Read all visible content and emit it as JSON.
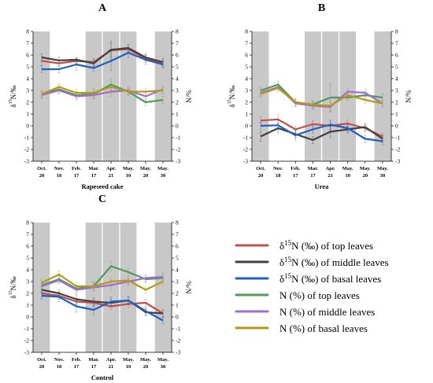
{
  "legend": {
    "position": "bottom-right",
    "entries": [
      {
        "key": "d15N_top",
        "label": "δ15N (‰) of top leaves",
        "color": "#c0504d"
      },
      {
        "key": "d15N_middle",
        "label": "δ15N (‰) of middle leaves",
        "color": "#404040"
      },
      {
        "key": "d15N_basal",
        "label": "δ15N (‰) of basal leaves",
        "color": "#1f5fbf"
      },
      {
        "key": "N_top",
        "label": "N (%) of top leaves",
        "color": "#4f9a5a"
      },
      {
        "key": "N_middle",
        "label": "N (%) of middle leaves",
        "color": "#9e6fcf"
      },
      {
        "key": "N_basal",
        "label": "N (%) of basal leaves",
        "color": "#b59a12"
      }
    ]
  },
  "chart_data": [
    {
      "type": "line",
      "title": "A",
      "xlabel": "Rapeseed cake",
      "ylabel_left": "δ15N/‰",
      "ylabel_right": "N/%",
      "ylim": [
        -3,
        8
      ],
      "yticks": [
        -3,
        -2,
        -1,
        0,
        1,
        2,
        3,
        4,
        5,
        6,
        7,
        8
      ],
      "categories": [
        [
          "Oct.",
          "20"
        ],
        [
          "Nov.",
          "18"
        ],
        [
          "Feb.",
          "17"
        ],
        [
          "Mar.",
          "17"
        ],
        [
          "Apr.",
          "21"
        ],
        [
          "May.",
          "10"
        ],
        [
          "May.",
          "20"
        ],
        [
          "May.",
          "30"
        ]
      ],
      "shaded_categories": [
        0,
        3,
        4,
        5,
        7
      ],
      "series": [
        {
          "key": "d15N_top",
          "values": [
            5.5,
            5.3,
            5.5,
            5.4,
            6.4,
            6.5,
            5.7,
            5.3
          ],
          "errors": [
            0.4,
            0.3,
            0.2,
            0.3,
            0.8,
            0.3,
            0.3,
            0.3
          ]
        },
        {
          "key": "d15N_middle",
          "values": [
            5.8,
            5.55,
            5.6,
            5.3,
            6.45,
            6.6,
            5.8,
            5.4
          ],
          "errors": [
            0.3,
            0.3,
            0.2,
            0.3,
            0.6,
            0.3,
            0.3,
            0.3
          ]
        },
        {
          "key": "d15N_basal",
          "values": [
            4.8,
            4.8,
            5.2,
            4.9,
            5.5,
            6.2,
            5.6,
            5.2
          ],
          "errors": [
            0.3,
            0.3,
            0.5,
            0.3,
            0.8,
            0.4,
            0.4,
            0.3
          ]
        },
        {
          "key": "N_top",
          "values": [
            2.7,
            3.1,
            2.6,
            2.7,
            3.5,
            2.9,
            2.0,
            2.2
          ],
          "errors": [
            0.3,
            0.3,
            0.3,
            0.4,
            0.5,
            0.3,
            0.3,
            0.3
          ]
        },
        {
          "key": "N_middle",
          "values": [
            2.6,
            3.0,
            2.5,
            2.6,
            2.9,
            3.0,
            2.5,
            3.1
          ],
          "errors": [
            0.3,
            0.3,
            0.3,
            0.3,
            0.4,
            0.3,
            0.3,
            0.3
          ]
        },
        {
          "key": "N_basal",
          "values": [
            2.7,
            3.3,
            2.8,
            2.8,
            3.3,
            2.9,
            2.9,
            3.0
          ],
          "errors": [
            0.3,
            0.3,
            0.3,
            0.4,
            0.5,
            0.3,
            0.3,
            0.3
          ]
        }
      ]
    },
    {
      "type": "line",
      "title": "B",
      "xlabel": "Urea",
      "ylabel_left": "δ15N/‰",
      "ylabel_right": "N/%",
      "ylim": [
        -3,
        8
      ],
      "yticks": [
        -3,
        -2,
        -1,
        0,
        1,
        2,
        3,
        4,
        5,
        6,
        7,
        8
      ],
      "categories": [
        [
          "Oct.",
          "20"
        ],
        [
          "Nov.",
          "18"
        ],
        [
          "Feb.",
          "17"
        ],
        [
          "Mar.",
          "17"
        ],
        [
          "Apr.",
          "21"
        ],
        [
          "May.",
          "10"
        ],
        [
          "May.",
          "20"
        ],
        [
          "May.",
          "30"
        ]
      ],
      "shaded_categories": [
        0,
        3,
        4,
        5,
        7
      ],
      "series": [
        {
          "key": "d15N_top",
          "values": [
            0.45,
            0.55,
            -0.3,
            0.15,
            0.0,
            0.2,
            -0.2,
            -0.9
          ],
          "errors": [
            0.3,
            0.4,
            0.3,
            0.3,
            0.4,
            0.3,
            0.3,
            0.3
          ]
        },
        {
          "key": "d15N_middle",
          "values": [
            -0.9,
            -0.2,
            -0.7,
            -1.2,
            -0.5,
            -0.3,
            -0.1,
            -1.1
          ],
          "errors": [
            0.4,
            0.4,
            0.3,
            0.3,
            0.5,
            0.3,
            0.3,
            0.3
          ]
        },
        {
          "key": "d15N_basal",
          "values": [
            0.0,
            0.05,
            -0.8,
            -0.3,
            0.1,
            -0.2,
            -1.1,
            -1.3
          ],
          "errors": [
            0.3,
            0.4,
            0.4,
            0.3,
            0.4,
            0.3,
            0.3,
            0.3
          ]
        },
        {
          "key": "N_top",
          "values": [
            3.0,
            3.5,
            2.0,
            1.8,
            2.4,
            2.4,
            2.6,
            2.4
          ],
          "errors": [
            0.3,
            0.3,
            0.3,
            0.3,
            1.2,
            0.3,
            0.3,
            0.3
          ]
        },
        {
          "key": "N_middle",
          "values": [
            2.8,
            3.3,
            1.9,
            1.7,
            1.6,
            2.9,
            2.8,
            1.9
          ],
          "errors": [
            0.3,
            0.3,
            0.3,
            0.3,
            0.4,
            0.3,
            0.3,
            0.3
          ]
        },
        {
          "key": "N_basal",
          "values": [
            2.7,
            3.2,
            2.0,
            1.8,
            1.7,
            2.6,
            2.2,
            1.9
          ],
          "errors": [
            0.3,
            0.3,
            0.3,
            0.3,
            0.4,
            0.3,
            0.3,
            0.3
          ]
        }
      ]
    },
    {
      "type": "line",
      "title": "C",
      "xlabel": "Control",
      "ylabel_left": "δ15N/‰",
      "ylabel_right": "N/%",
      "ylim": [
        -3,
        8
      ],
      "yticks": [
        -3,
        -2,
        -1,
        0,
        1,
        2,
        3,
        4,
        5,
        6,
        7,
        8
      ],
      "categories": [
        [
          "Oct.",
          "20"
        ],
        [
          "Nov.",
          "18"
        ],
        [
          "Feb.",
          "17"
        ],
        [
          "Mar.",
          "17"
        ],
        [
          "Apr.",
          "21"
        ],
        [
          "May.",
          "10"
        ],
        [
          "May.",
          "20"
        ],
        [
          "May.",
          "30"
        ]
      ],
      "shaded_categories": [
        0,
        3,
        4,
        5,
        7
      ],
      "series": [
        {
          "key": "d15N_top",
          "values": [
            2.0,
            1.8,
            1.3,
            1.2,
            0.9,
            1.1,
            1.2,
            0.3
          ],
          "errors": [
            0.3,
            0.3,
            0.3,
            0.3,
            0.3,
            0.3,
            0.3,
            0.3
          ]
        },
        {
          "key": "d15N_middle",
          "values": [
            2.3,
            2.0,
            1.5,
            1.3,
            1.2,
            1.4,
            0.4,
            0.3
          ],
          "errors": [
            0.3,
            0.3,
            0.4,
            0.3,
            0.3,
            0.3,
            0.3,
            0.3
          ]
        },
        {
          "key": "d15N_basal",
          "values": [
            1.8,
            1.7,
            0.9,
            0.6,
            1.3,
            1.4,
            0.5,
            -0.3
          ],
          "errors": [
            0.3,
            0.4,
            0.5,
            0.4,
            0.4,
            0.3,
            0.3,
            0.3
          ]
        },
        {
          "key": "N_top",
          "values": [
            2.7,
            3.2,
            2.4,
            2.6,
            4.3,
            3.8,
            3.2,
            3.3
          ],
          "errors": [
            0.3,
            0.3,
            0.3,
            0.4,
            0.4,
            0.3,
            0.3,
            0.3
          ]
        },
        {
          "key": "N_middle",
          "values": [
            2.6,
            3.1,
            2.3,
            2.5,
            2.7,
            3.0,
            3.3,
            3.4
          ],
          "errors": [
            0.3,
            0.3,
            0.3,
            0.3,
            0.4,
            0.3,
            0.3,
            0.3
          ]
        },
        {
          "key": "N_basal",
          "values": [
            2.9,
            3.6,
            2.6,
            2.6,
            3.0,
            3.1,
            2.3,
            3.0
          ],
          "errors": [
            0.3,
            0.3,
            0.3,
            0.3,
            0.4,
            0.3,
            0.3,
            0.3
          ]
        }
      ]
    }
  ]
}
